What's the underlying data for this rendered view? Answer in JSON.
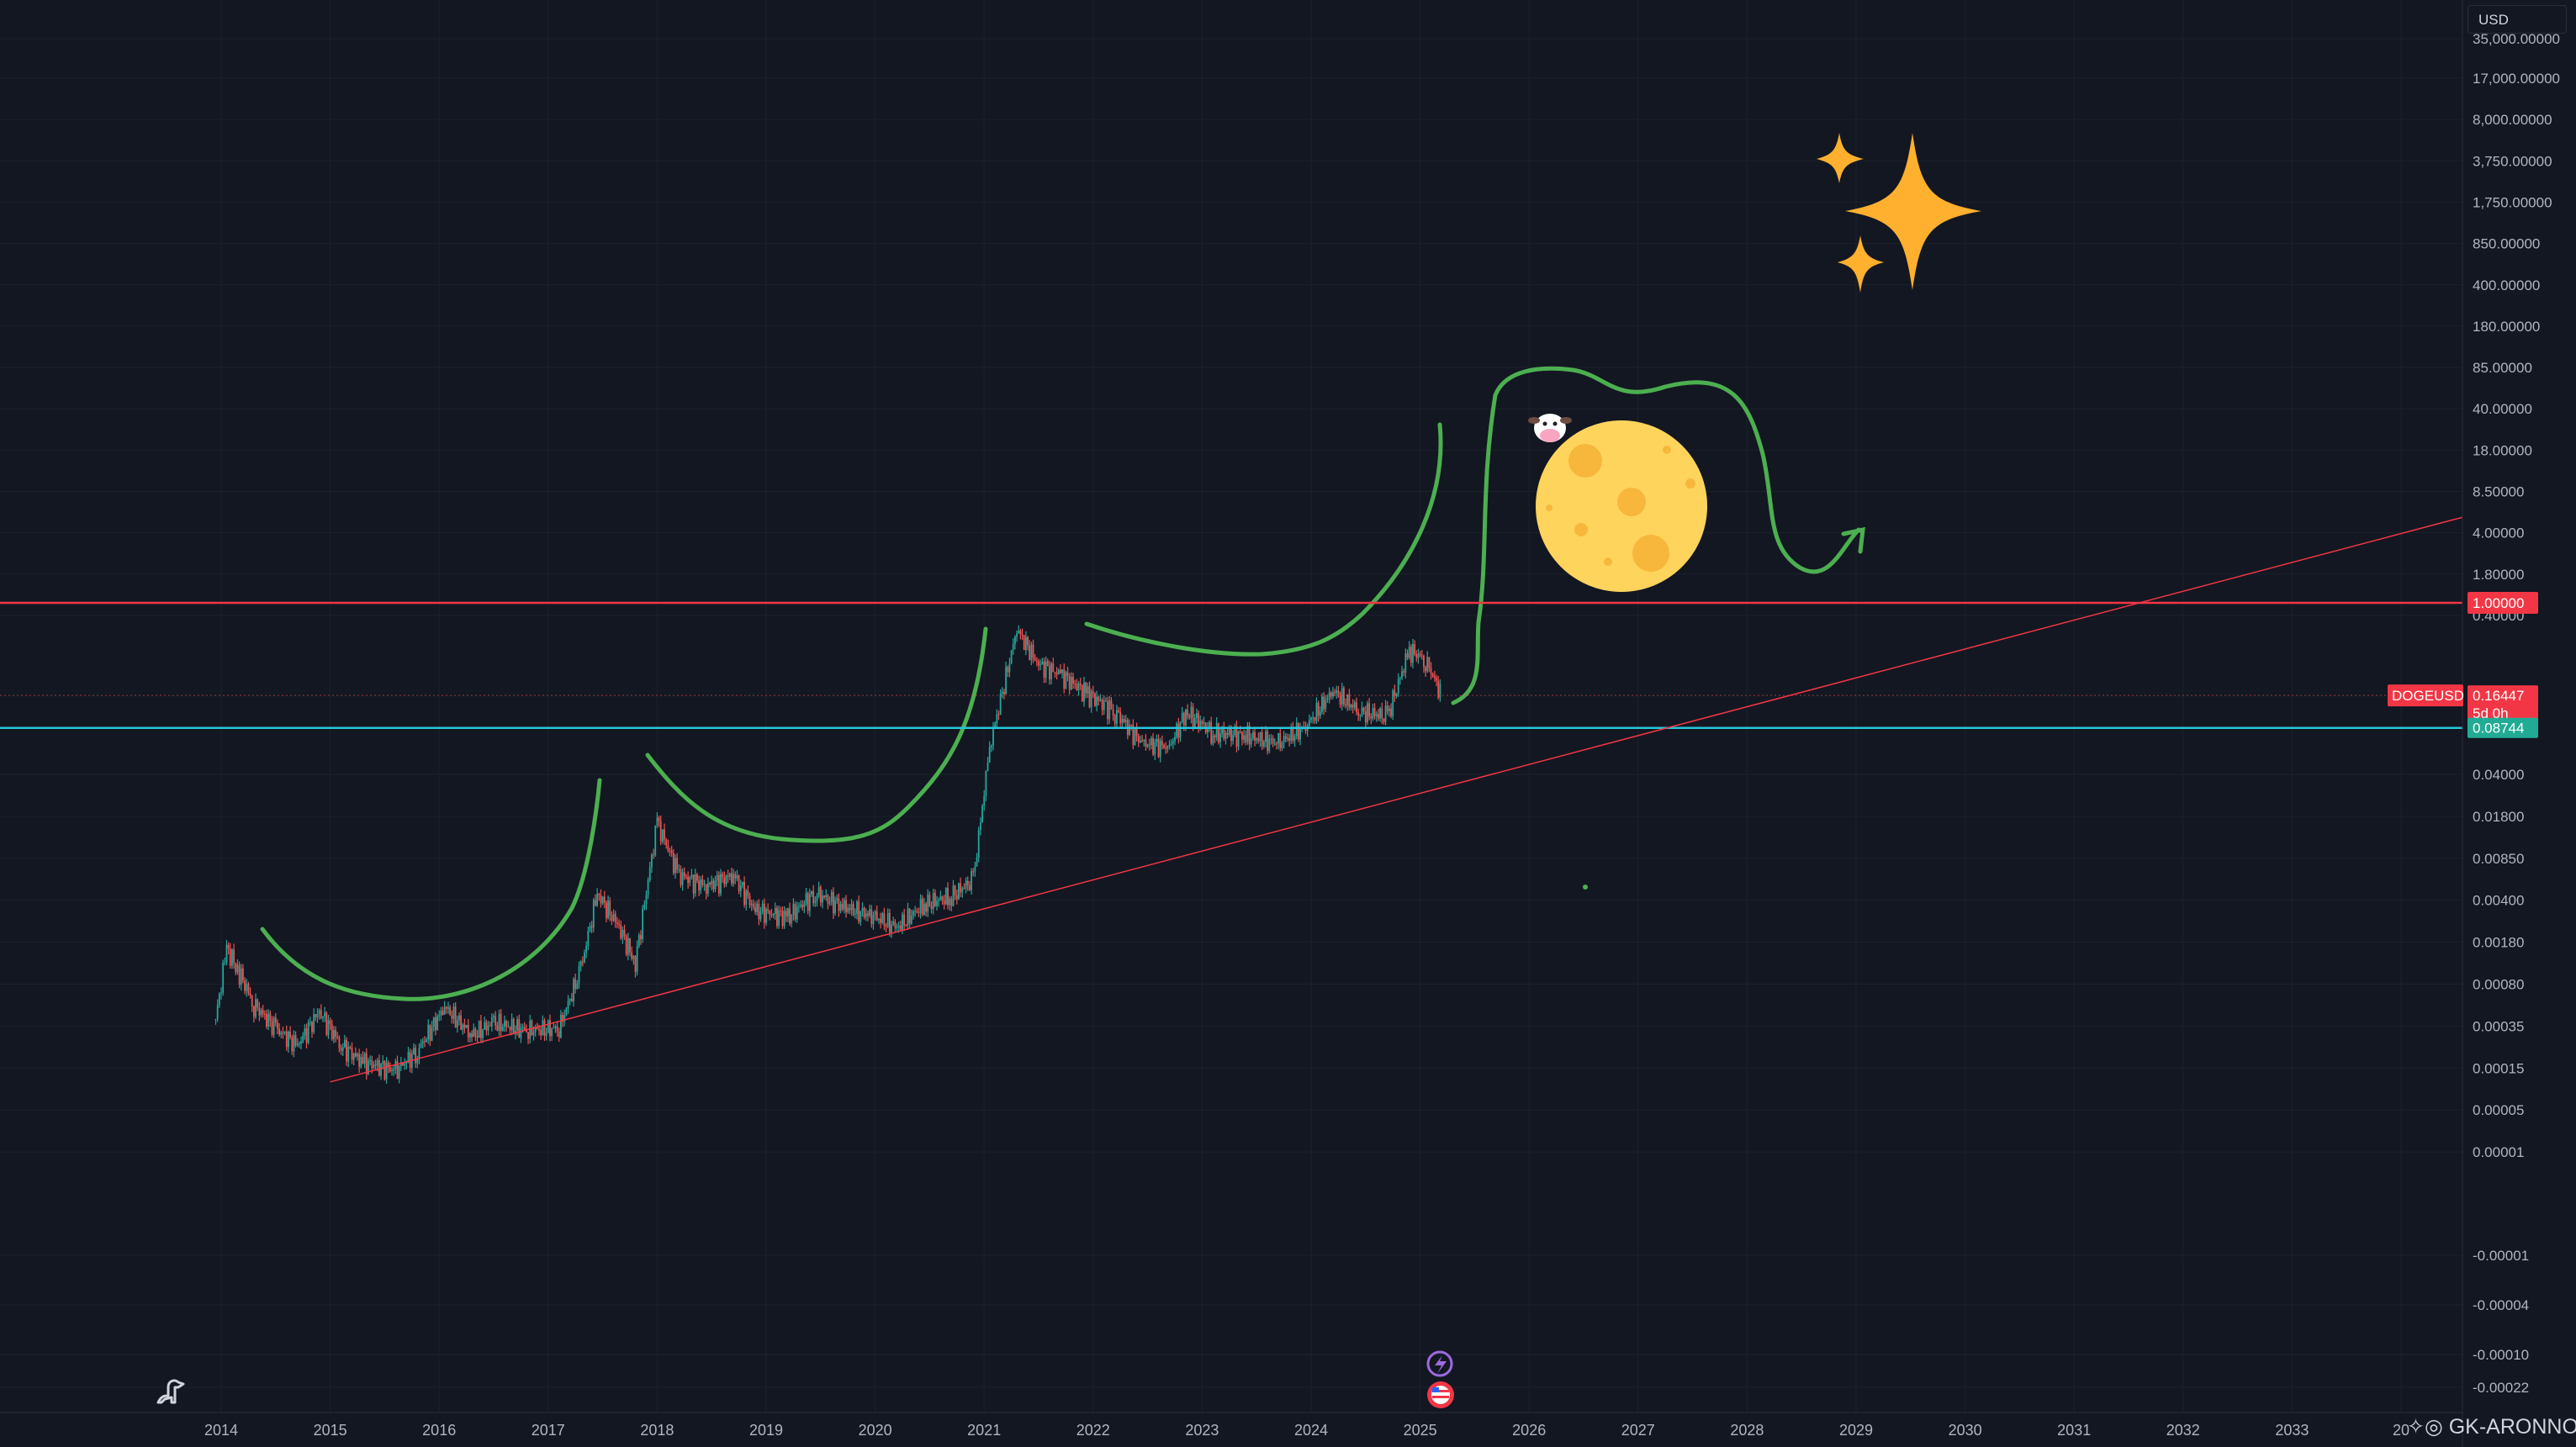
{
  "header": {
    "currency": "USD"
  },
  "watermark": {
    "author": "GK-ARONNO"
  },
  "colors": {
    "background": "#131722",
    "candle_up": "#26a69a",
    "candle_down": "#ef5350",
    "resistance_line": "#f23645",
    "support_line": "#22ab94",
    "trend_line": "#f23645",
    "drawing_green": "#4caf50",
    "moon": "#ffd45c",
    "sparkle": "#ffb02e"
  },
  "chart_data": {
    "type": "candlestick",
    "symbol": "DOGEUSD",
    "y_scale": "log",
    "y_ticks": [
      "35,000.00000",
      "17,000.00000",
      "8,000.00000",
      "3,750.00000",
      "1,750.00000",
      "850.00000",
      "400.00000",
      "180.00000",
      "85.00000",
      "40.00000",
      "18.00000",
      "8.50000",
      "4.00000",
      "1.80000",
      "0.40000",
      "0.04000",
      "0.01800",
      "0.00850",
      "0.00400",
      "0.00180",
      "0.00080",
      "0.00035",
      "0.00015",
      "0.00005",
      "0.00001",
      "-0.00001",
      "-0.00004",
      "-0.00010",
      "-0.00022"
    ],
    "x_ticks": [
      "2014",
      "2015",
      "2016",
      "2017",
      "2018",
      "2019",
      "2020",
      "2021",
      "2022",
      "2023",
      "2024",
      "2025",
      "2026",
      "2027",
      "2028",
      "2029",
      "2030",
      "2031",
      "2032",
      "2033",
      "20"
    ],
    "price_markers": [
      {
        "label": "1.00000",
        "kind": "resistance"
      },
      {
        "label": "0.16447",
        "kind": "last-price"
      },
      {
        "label": "5d 0h",
        "kind": "countdown"
      },
      {
        "label": "0.08744",
        "kind": "support"
      }
    ],
    "symbol_badge": "DOGEUSD",
    "series": [
      {
        "values": [
          {
            "x": 2013.95,
            "y": 0.0003
          },
          {
            "x": 2014.05,
            "y": 0.0012
          },
          {
            "x": 2014.15,
            "y": 0.0008
          },
          {
            "x": 2014.3,
            "y": 0.0004
          },
          {
            "x": 2014.5,
            "y": 0.00025
          },
          {
            "x": 2014.7,
            "y": 0.00018
          },
          {
            "x": 2014.9,
            "y": 0.00035
          },
          {
            "x": 2015.1,
            "y": 0.00018
          },
          {
            "x": 2015.3,
            "y": 0.00013
          },
          {
            "x": 2015.6,
            "y": 0.00011
          },
          {
            "x": 2015.8,
            "y": 0.00016
          },
          {
            "x": 2016.05,
            "y": 0.00038
          },
          {
            "x": 2016.3,
            "y": 0.00022
          },
          {
            "x": 2016.5,
            "y": 0.00028
          },
          {
            "x": 2016.8,
            "y": 0.00024
          },
          {
            "x": 2017.1,
            "y": 0.00025
          },
          {
            "x": 2017.3,
            "y": 0.0008
          },
          {
            "x": 2017.45,
            "y": 0.0035
          },
          {
            "x": 2017.65,
            "y": 0.0018
          },
          {
            "x": 2017.8,
            "y": 0.0009
          },
          {
            "x": 2018.0,
            "y": 0.014
          },
          {
            "x": 2018.2,
            "y": 0.005
          },
          {
            "x": 2018.45,
            "y": 0.004
          },
          {
            "x": 2018.7,
            "y": 0.005
          },
          {
            "x": 2018.9,
            "y": 0.0025
          },
          {
            "x": 2019.2,
            "y": 0.0022
          },
          {
            "x": 2019.45,
            "y": 0.0035
          },
          {
            "x": 2019.7,
            "y": 0.0027
          },
          {
            "x": 2020.0,
            "y": 0.0022
          },
          {
            "x": 2020.2,
            "y": 0.0018
          },
          {
            "x": 2020.45,
            "y": 0.0028
          },
          {
            "x": 2020.7,
            "y": 0.0033
          },
          {
            "x": 2020.9,
            "y": 0.0045
          },
          {
            "x": 2021.05,
            "y": 0.06
          },
          {
            "x": 2021.3,
            "y": 0.6
          },
          {
            "x": 2021.5,
            "y": 0.3
          },
          {
            "x": 2021.7,
            "y": 0.25
          },
          {
            "x": 2021.95,
            "y": 0.17
          },
          {
            "x": 2022.2,
            "y": 0.12
          },
          {
            "x": 2022.45,
            "y": 0.065
          },
          {
            "x": 2022.7,
            "y": 0.06
          },
          {
            "x": 2022.85,
            "y": 0.12
          },
          {
            "x": 2023.1,
            "y": 0.08
          },
          {
            "x": 2023.4,
            "y": 0.075
          },
          {
            "x": 2023.7,
            "y": 0.065
          },
          {
            "x": 2023.95,
            "y": 0.09
          },
          {
            "x": 2024.2,
            "y": 0.18
          },
          {
            "x": 2024.45,
            "y": 0.12
          },
          {
            "x": 2024.7,
            "y": 0.11
          },
          {
            "x": 2024.9,
            "y": 0.4
          },
          {
            "x": 2025.05,
            "y": 0.33
          },
          {
            "x": 2025.2,
            "y": 0.16447
          }
        ]
      }
    ],
    "annotations": []
  }
}
